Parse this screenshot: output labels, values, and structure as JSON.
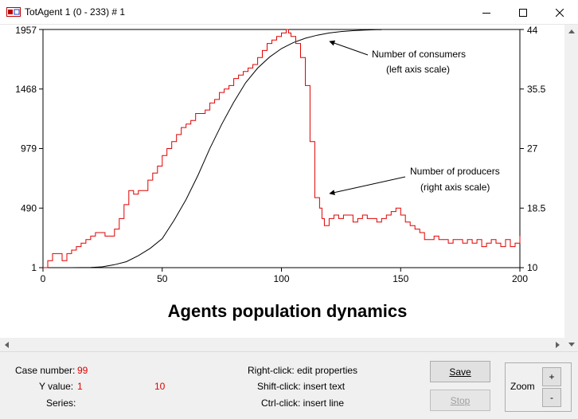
{
  "window": {
    "title": "TotAgent 1 (0 - 233) # 1"
  },
  "chart_data": {
    "type": "line",
    "title": "Agents population dynamics",
    "x_ticks": [
      "0",
      "50",
      "100",
      "150",
      "200"
    ],
    "xlim": [
      0,
      200
    ],
    "left_axis": {
      "ticks": [
        "1",
        "490",
        "979",
        "1468",
        "1957"
      ],
      "range": [
        1,
        1957
      ]
    },
    "right_axis": {
      "ticks": [
        "10",
        "18.5",
        "27",
        "35.5",
        "44"
      ],
      "range": [
        10,
        44
      ]
    },
    "series": [
      {
        "name": "Number of consumers",
        "axis": "left",
        "color": "#000000",
        "x": [
          12,
          20,
          25,
          30,
          35,
          40,
          45,
          50,
          55,
          60,
          65,
          70,
          75,
          80,
          85,
          90,
          95,
          100,
          105,
          110,
          115,
          120,
          125,
          130,
          135,
          140,
          142
        ],
        "y": [
          1,
          3,
          8,
          25,
          50,
          100,
          160,
          240,
          390,
          560,
          760,
          980,
          1180,
          1360,
          1520,
          1640,
          1730,
          1800,
          1850,
          1885,
          1910,
          1928,
          1940,
          1947,
          1952,
          1955,
          1956
        ]
      },
      {
        "name": "Number of producers",
        "axis": "right",
        "color": "#e00000",
        "x": [
          0,
          2,
          4,
          6,
          8,
          10,
          12,
          14,
          16,
          18,
          20,
          22,
          24,
          26,
          28,
          30,
          32,
          34,
          36,
          38,
          40,
          42,
          44,
          46,
          48,
          50,
          52,
          54,
          56,
          58,
          60,
          62,
          64,
          66,
          68,
          70,
          72,
          74,
          76,
          78,
          80,
          82,
          84,
          86,
          88,
          90,
          92,
          94,
          96,
          98,
          100,
          102,
          103,
          104,
          106,
          108,
          110,
          112,
          114,
          116,
          117,
          118,
          120,
          122,
          124,
          126,
          128,
          130,
          132,
          134,
          136,
          138,
          140,
          142,
          144,
          146,
          148,
          150,
          152,
          154,
          156,
          158,
          160,
          162,
          164,
          166,
          168,
          170,
          172,
          174,
          176,
          178,
          180,
          182,
          184,
          186,
          188,
          190,
          192,
          194,
          196,
          198,
          200
        ],
        "y": [
          10,
          11,
          12,
          12,
          11,
          12,
          12.5,
          13,
          13.5,
          14,
          14.5,
          15,
          15,
          14.5,
          14.5,
          15.5,
          17,
          19,
          21,
          20.5,
          21,
          21,
          22.5,
          23.5,
          24.5,
          26,
          27,
          28,
          29,
          30,
          30.5,
          31,
          32,
          32,
          32.5,
          33.5,
          34,
          35,
          35.5,
          36,
          37,
          37.5,
          38,
          38.5,
          39,
          40,
          41,
          42,
          42.5,
          43,
          43.5,
          44,
          43.5,
          43,
          42,
          40,
          36,
          28,
          20,
          18.5,
          17,
          16,
          17,
          17.5,
          17,
          17.5,
          17.5,
          16.5,
          17,
          17.5,
          17,
          17,
          16.5,
          17,
          17.5,
          18,
          18.5,
          17.5,
          16.5,
          16,
          15.5,
          15,
          14,
          14,
          14.5,
          14,
          14,
          13.5,
          14,
          14,
          13.5,
          14,
          13.5,
          14,
          13,
          13.5,
          14,
          13.5,
          13,
          14,
          13,
          13.5,
          14.5
        ]
      }
    ],
    "annotations": [
      {
        "line1": "Number of consumers",
        "line2": "(left axis scale)"
      },
      {
        "line1": "Number of producers",
        "line2": "(right axis scale)"
      }
    ]
  },
  "info": {
    "case_number_label": "Case number:",
    "case_number_value": "99",
    "y_value_label": "Y value:",
    "y_value_left": "1",
    "y_value_right": "10",
    "series_label": "Series:",
    "hint_right_click": "Right-click: edit properties",
    "hint_shift_click": "Shift-click: insert text",
    "hint_ctrl_click": "Ctrl-click: insert line"
  },
  "buttons": {
    "save_label": "Save",
    "stop_label": "Stop",
    "zoom_label": "Zoom",
    "zoom_in": "+",
    "zoom_out": "-"
  }
}
